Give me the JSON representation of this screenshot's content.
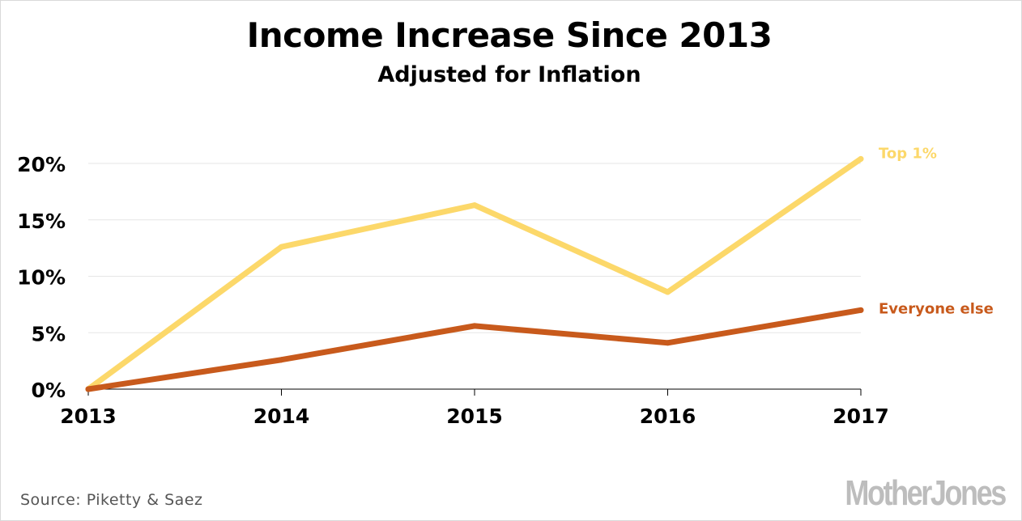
{
  "chart_data": {
    "type": "line",
    "title": "Income Increase Since 2013",
    "subtitle": "Adjusted for Inflation",
    "x": [
      "2013",
      "2014",
      "2015",
      "2016",
      "2017"
    ],
    "y_ticks": [
      "0%",
      "5%",
      "10%",
      "15%",
      "20%"
    ],
    "ylim": [
      0,
      20
    ],
    "grid": true,
    "series": [
      {
        "name": "Top 1%",
        "values": [
          0,
          12.6,
          16.3,
          8.6,
          20.4
        ],
        "color": "#fcd86a"
      },
      {
        "name": "Everyone else",
        "values": [
          0,
          2.6,
          5.6,
          4.1,
          7.0
        ],
        "color": "#c85a1c"
      }
    ]
  },
  "footer": {
    "source": "Source:  Piketty & Saez",
    "logo": "MotherJones"
  }
}
